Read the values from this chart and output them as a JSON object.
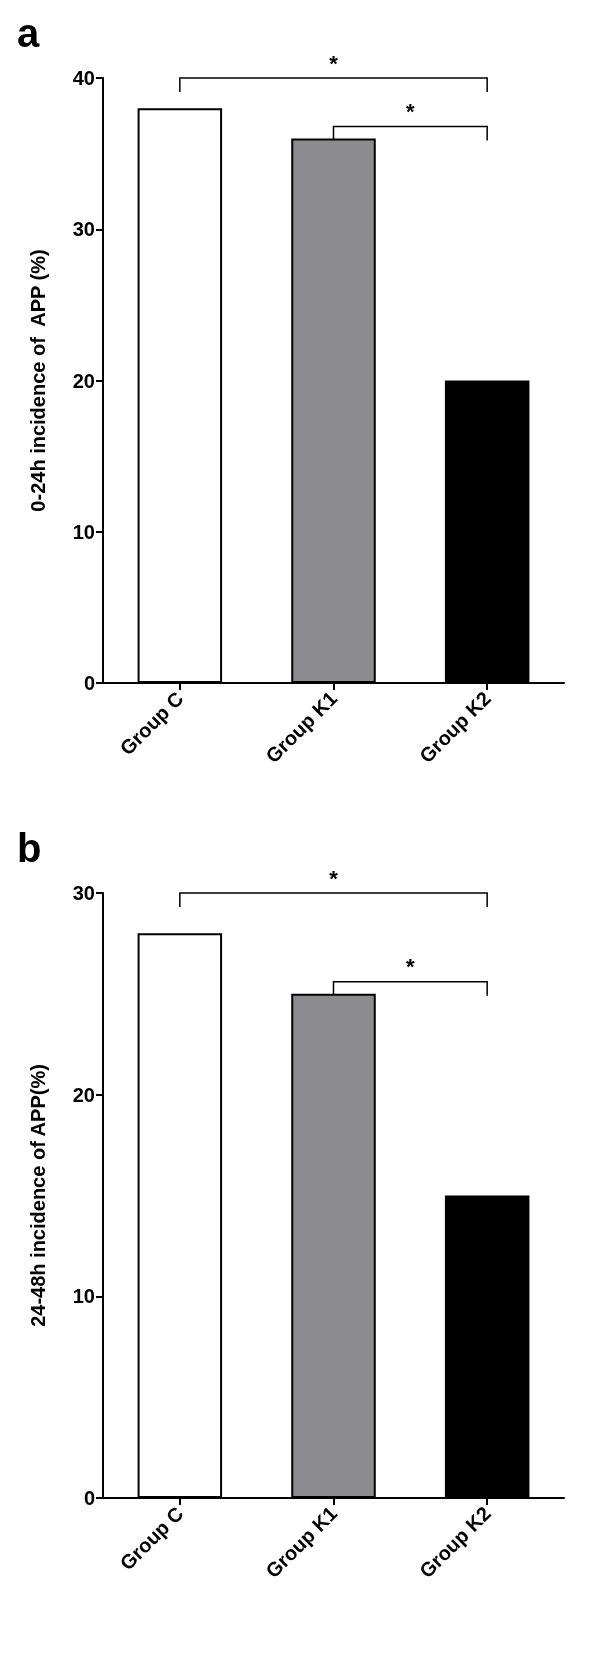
{
  "chart_data": [
    {
      "type": "bar",
      "title": "a",
      "ylabel": "0-24h incidence of  APP (%)",
      "categories": [
        "Group C",
        "Group K1",
        "Group K2"
      ],
      "values": [
        38,
        36,
        20
      ],
      "colors": [
        "#ffffff",
        "#8c8b90",
        "#000000"
      ],
      "ylim": [
        0,
        40
      ],
      "yticks": [
        0,
        10,
        20,
        30,
        40
      ],
      "grid": false,
      "annotations": [
        "*",
        "*"
      ]
    },
    {
      "type": "bar",
      "title": "b",
      "ylabel": "24-48h incidence of APP(%)",
      "categories": [
        "Group C",
        "Group K1",
        "Group K2"
      ],
      "values": [
        28,
        25,
        15
      ],
      "colors": [
        "#ffffff",
        "#8c8b90",
        "#000000"
      ],
      "ylim": [
        0,
        30
      ],
      "yticks": [
        0,
        10,
        20,
        30
      ],
      "grid": false,
      "annotations": [
        "*",
        "*"
      ]
    }
  ]
}
